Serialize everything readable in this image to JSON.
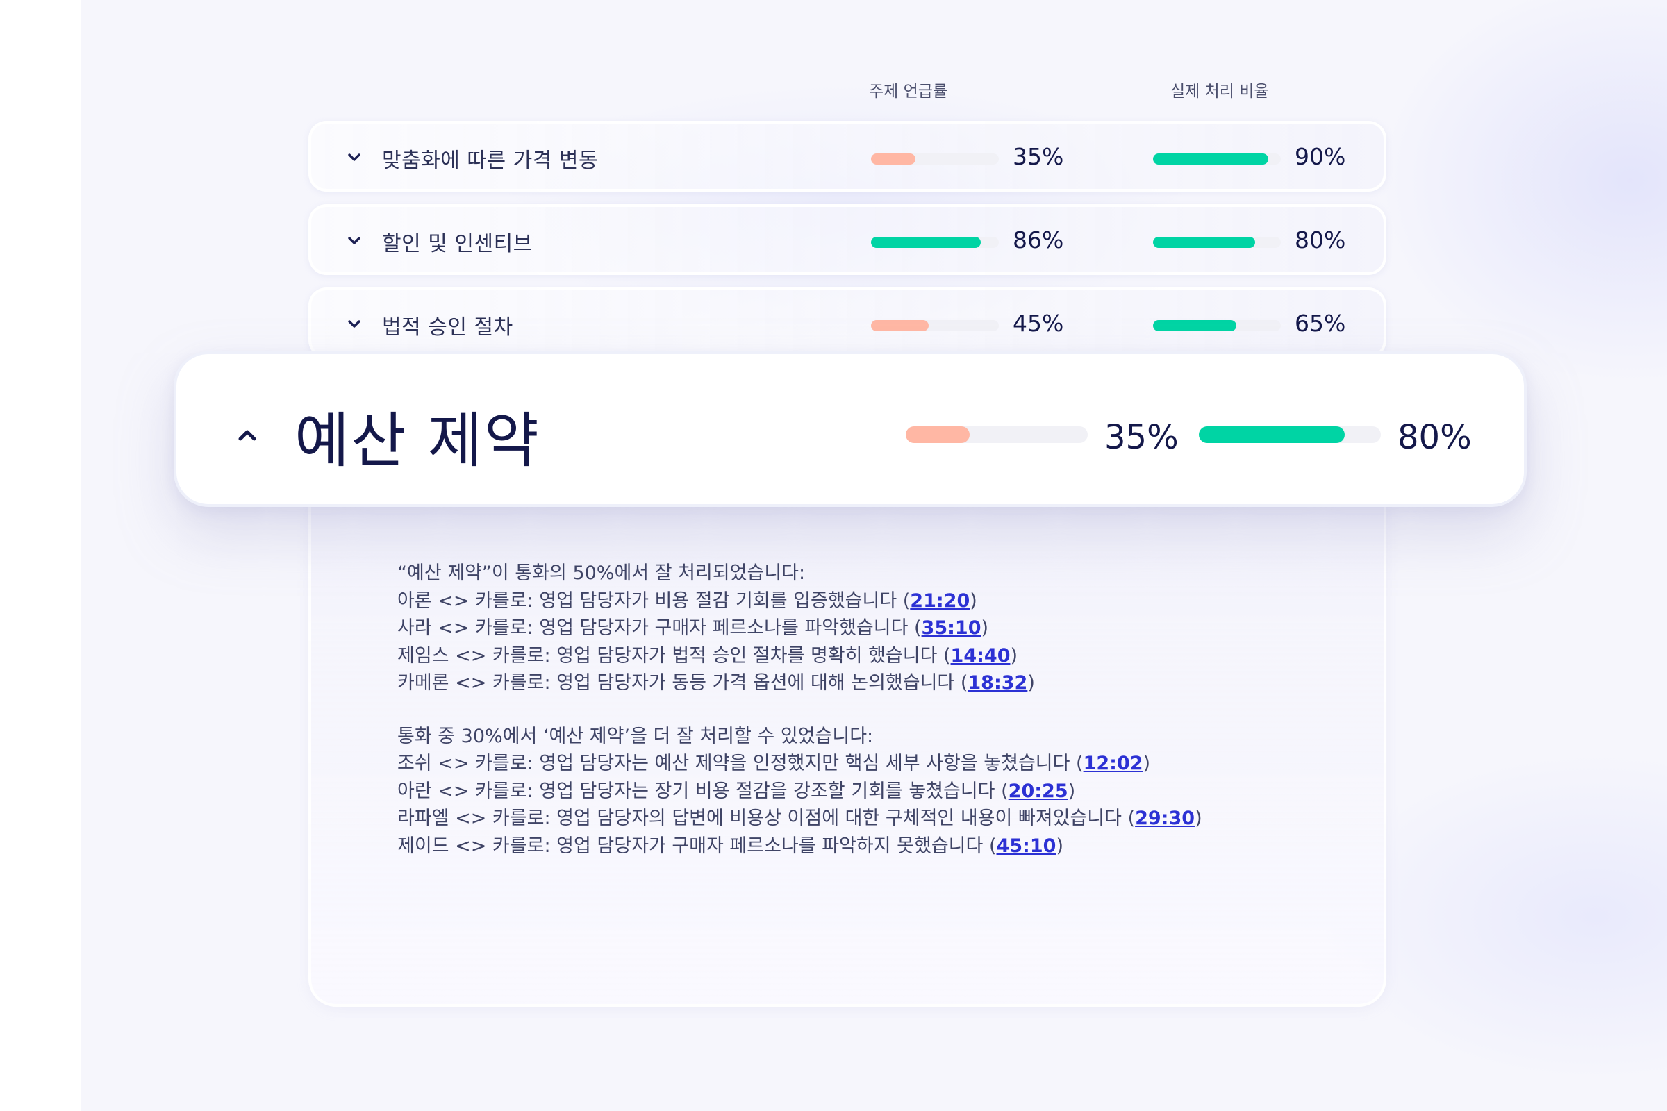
{
  "headers": {
    "mention_rate": "주제 언급률",
    "handling_ratio": "실제 처리 비율"
  },
  "colors": {
    "teal": "#00d4a4",
    "salmon": "#ffb7a4",
    "track": "#f1f1f6",
    "link": "#2c31d4"
  },
  "rows": [
    {
      "topic": "맞춤화에 따른 가격 변동",
      "mention": "35%",
      "mention_value": 0.35,
      "mention_color": "salmon",
      "handled": "90%",
      "handled_value": 0.9,
      "icon": "chevron-down-icon"
    },
    {
      "topic": "할인 및 인센티브",
      "mention": "86%",
      "mention_value": 0.86,
      "mention_color": "teal",
      "handled": "80%",
      "handled_value": 0.8,
      "icon": "chevron-down-icon"
    },
    {
      "topic": "법적 승인 절차",
      "mention": "45%",
      "mention_value": 0.45,
      "mention_color": "salmon",
      "handled": "65%",
      "handled_value": 0.65,
      "icon": "chevron-down-icon"
    }
  ],
  "expanded": {
    "topic": "예산 제약",
    "icon": "chevron-up-icon",
    "mention": "35%",
    "mention_value": 0.35,
    "handled": "80%",
    "handled_value": 0.8
  },
  "summary": {
    "good_heading": "“예산 제약”이 통화의 50%에서 잘 처리되었습니다:",
    "good_items": [
      {
        "text": "아론 <> 카를로: 영업 담당자가 비용 절감 기회를 입증했습니다 (",
        "time": "21:20",
        "close": ")"
      },
      {
        "text": "사라 <> 카를로: 영업 담당자가 구매자 페르소나를 파악했습니다  (",
        "time": "35:10",
        "close": ")"
      },
      {
        "text": "제임스 <> 카를로: 영업 담당자가 법적 승인 절차를 명확히 했습니다 (",
        "time": "14:40",
        "close": ")"
      },
      {
        "text": "카메론 <> 카를로: 영업 담당자가 동등 가격 옵션에 대해 논의했습니다 (",
        "time": "18:32",
        "close": ")"
      }
    ],
    "improve_heading": "통화 중 30%에서 ‘예산 제약’을 더 잘 처리할 수 있었습니다:",
    "improve_items": [
      {
        "text": "조쉬 <> 카를로: 영업 담당자는 예산 제약을 인정했지만 핵심 세부 사항을 놓쳤습니다 (",
        "time": "12:02",
        "close": ")"
      },
      {
        "text": "아란 <> 카를로: 영업 담당자는 장기 비용 절감을 강조할 기회를 놓쳤습니다 (",
        "time": "20:25",
        "close": ")"
      },
      {
        "text": "라파엘 <> 카를로: 영업 담당자의 답변에 비용상 이점에 대한 구체적인 내용이 빠져있습니다 (",
        "time": "29:30",
        "close": ")"
      },
      {
        "text": "제이드 <> 카를로: 영업 담당자가 구매자 페르소나를 파악하지 못했습니다 (",
        "time": "45:10",
        "close": ")"
      }
    ]
  }
}
